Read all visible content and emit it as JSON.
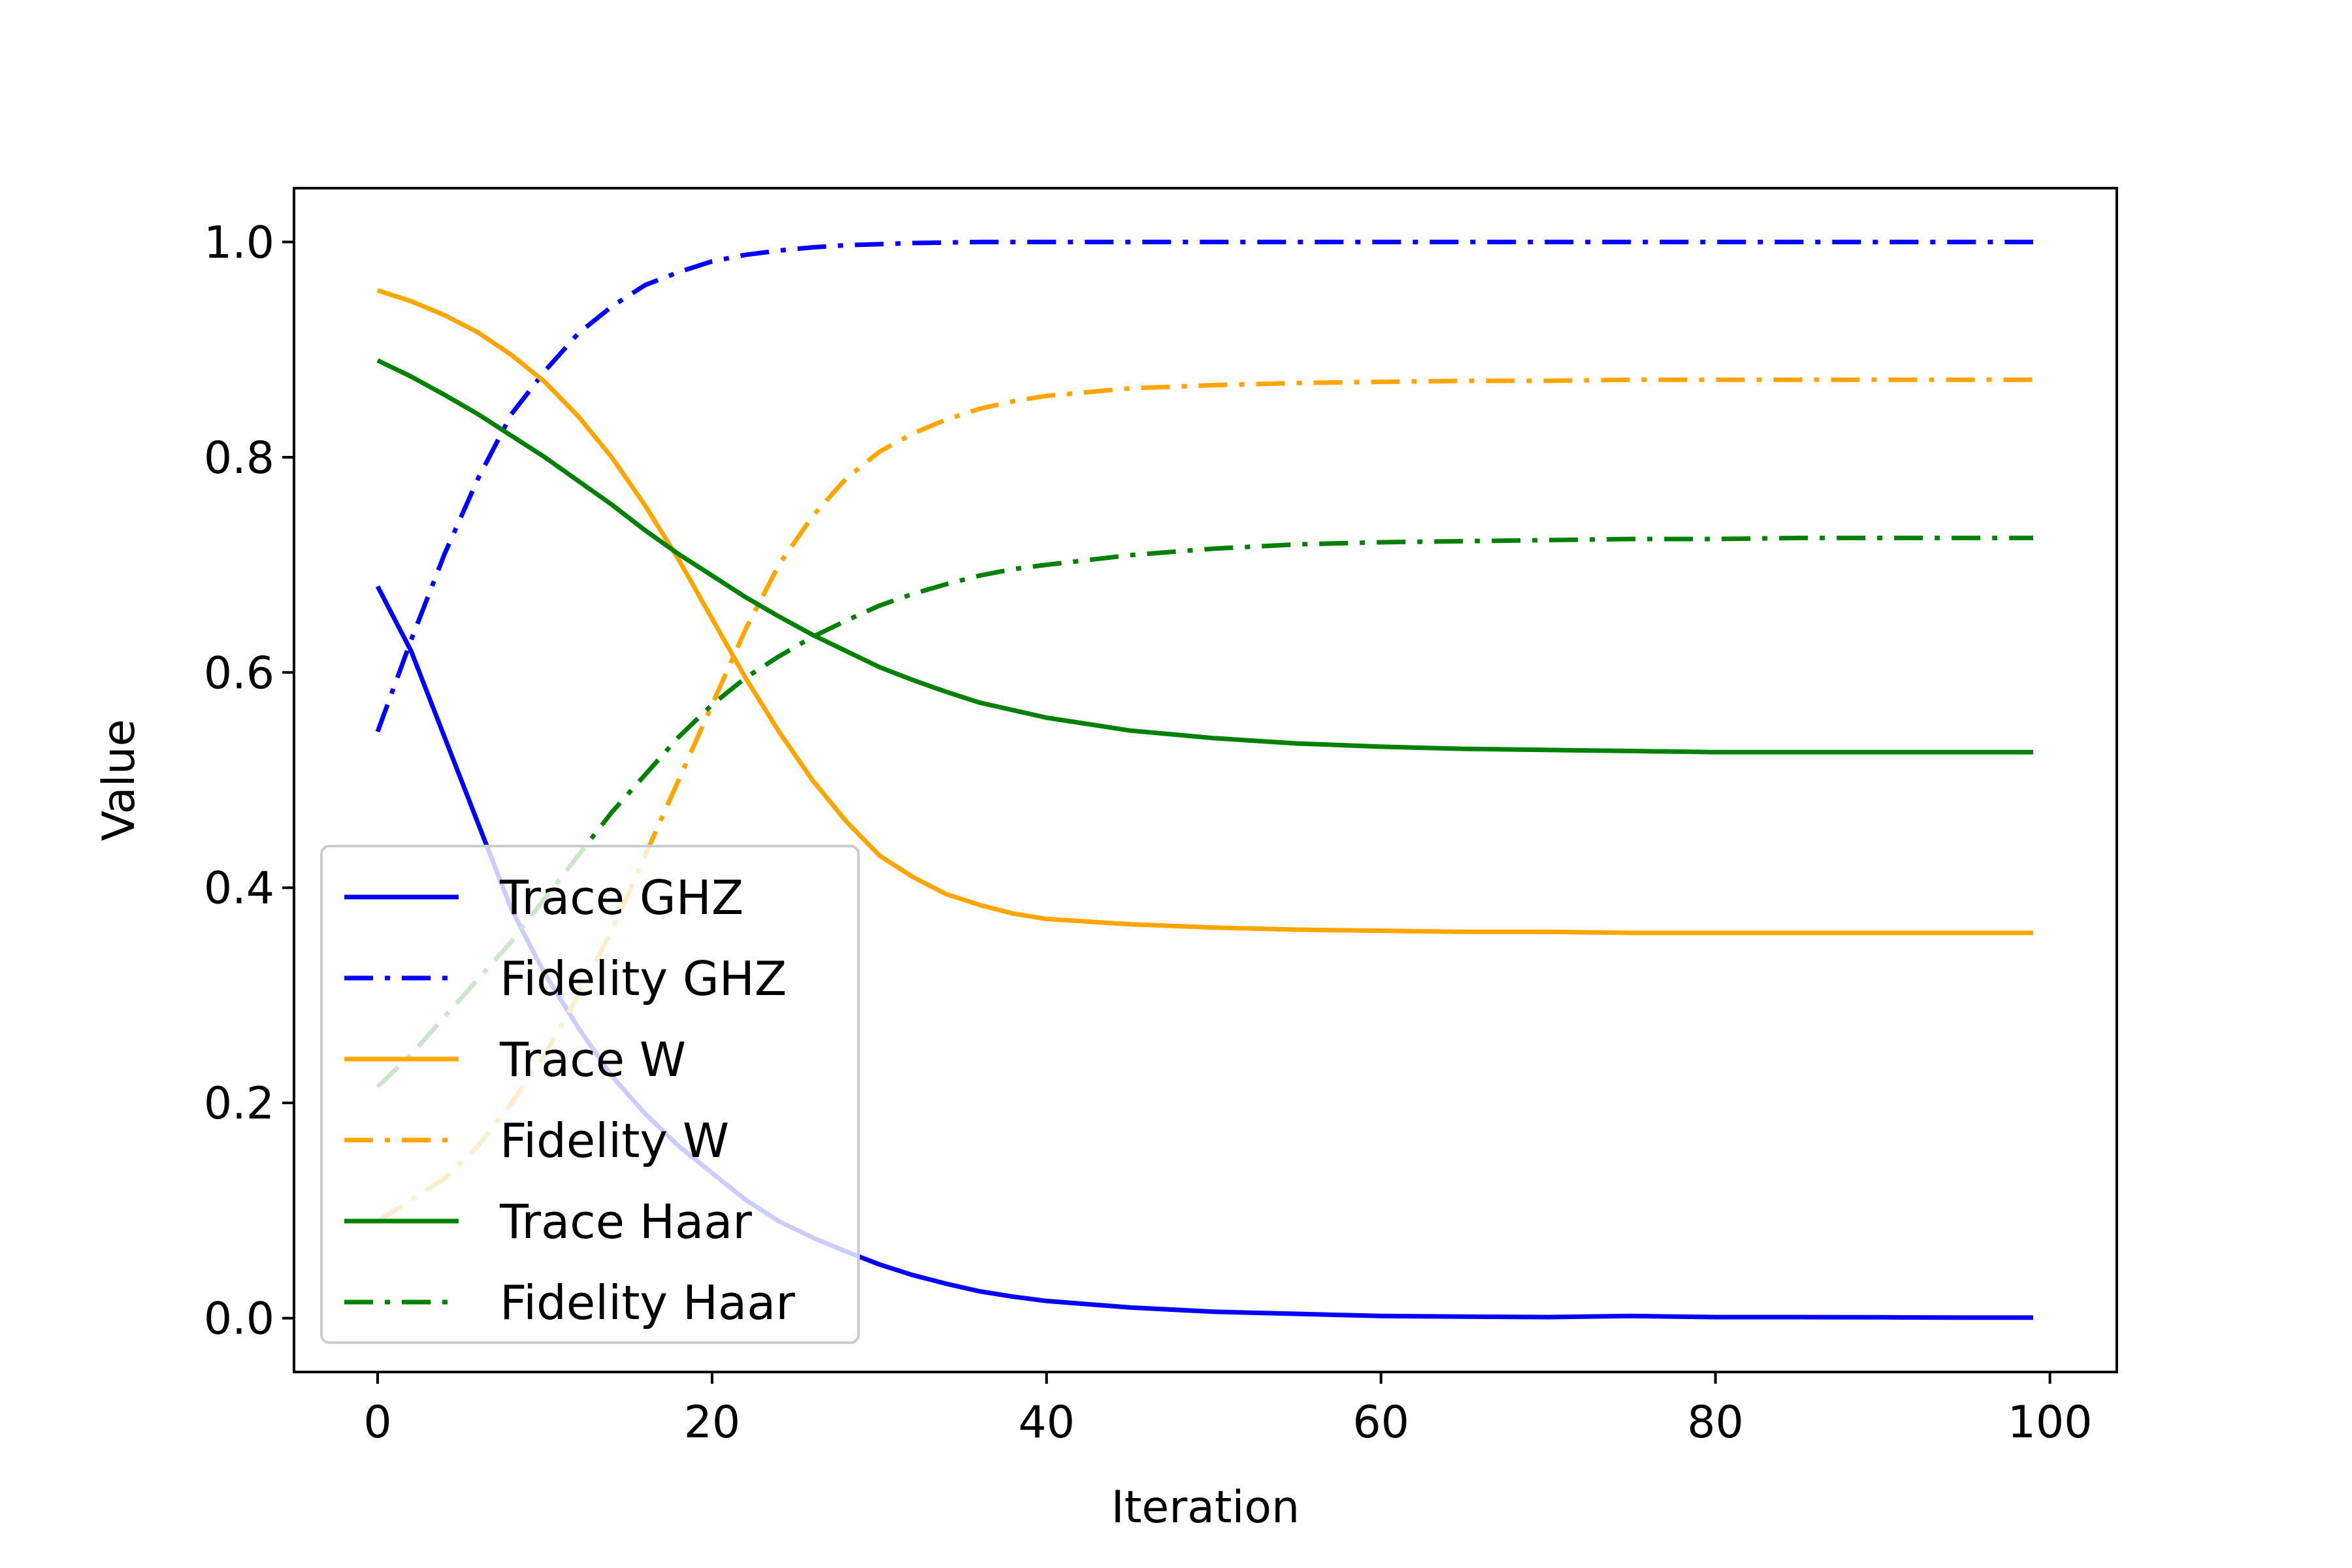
{
  "chart_data": {
    "type": "line",
    "title": "",
    "xlabel": "Iteration",
    "ylabel": "Value",
    "xlim": [
      -5,
      104
    ],
    "ylim": [
      -0.05,
      1.05
    ],
    "xticks": [
      0,
      20,
      40,
      60,
      80,
      100
    ],
    "yticks": [
      0.0,
      0.2,
      0.4,
      0.6,
      0.8,
      1.0
    ],
    "xtick_labels": [
      "0",
      "20",
      "40",
      "60",
      "80",
      "100"
    ],
    "ytick_labels": [
      "0.0",
      "0.2",
      "0.4",
      "0.6",
      "0.8",
      "1.0"
    ],
    "grid": false,
    "legend_position": "lower-left",
    "x": [
      0,
      2,
      4,
      6,
      8,
      10,
      12,
      14,
      16,
      18,
      20,
      22,
      24,
      26,
      28,
      30,
      32,
      34,
      36,
      38,
      40,
      45,
      50,
      55,
      60,
      65,
      70,
      75,
      80,
      85,
      90,
      95,
      99
    ],
    "series": [
      {
        "name": "Trace GHZ",
        "color": "#0000ff",
        "style": "solid",
        "values": [
          0.68,
          0.62,
          0.54,
          0.46,
          0.38,
          0.32,
          0.27,
          0.225,
          0.19,
          0.16,
          0.135,
          0.11,
          0.09,
          0.075,
          0.062,
          0.05,
          0.04,
          0.032,
          0.025,
          0.02,
          0.016,
          0.01,
          0.006,
          0.004,
          0.002,
          0.0015,
          0.001,
          0.002,
          0.001,
          0.001,
          0.0008,
          0.0005,
          0.0005
        ]
      },
      {
        "name": "Fidelity GHZ",
        "color": "#0000ff",
        "style": "dashdot",
        "values": [
          0.545,
          0.63,
          0.71,
          0.78,
          0.84,
          0.88,
          0.915,
          0.94,
          0.96,
          0.972,
          0.982,
          0.988,
          0.992,
          0.995,
          0.997,
          0.998,
          0.999,
          0.9995,
          1.0,
          1.0,
          1.0,
          1.0,
          1.0,
          1.0,
          1.0,
          1.0,
          1.0,
          1.0,
          1.0,
          1.0,
          1.0,
          1.0,
          1.0
        ]
      },
      {
        "name": "Trace W",
        "color": "#ffa500",
        "style": "solid",
        "values": [
          0.955,
          0.945,
          0.932,
          0.916,
          0.895,
          0.87,
          0.838,
          0.8,
          0.755,
          0.705,
          0.65,
          0.595,
          0.545,
          0.5,
          0.462,
          0.43,
          0.41,
          0.394,
          0.384,
          0.376,
          0.371,
          0.366,
          0.363,
          0.361,
          0.36,
          0.359,
          0.359,
          0.358,
          0.358,
          0.358,
          0.358,
          0.358,
          0.358
        ]
      },
      {
        "name": "Fidelity W",
        "color": "#ffa500",
        "style": "dashdot",
        "values": [
          0.09,
          0.11,
          0.13,
          0.16,
          0.2,
          0.245,
          0.3,
          0.36,
          0.43,
          0.5,
          0.57,
          0.64,
          0.7,
          0.745,
          0.78,
          0.805,
          0.822,
          0.835,
          0.845,
          0.852,
          0.857,
          0.864,
          0.867,
          0.869,
          0.87,
          0.871,
          0.871,
          0.872,
          0.872,
          0.872,
          0.872,
          0.872,
          0.872
        ]
      },
      {
        "name": "Trace Haar",
        "color": "#008000",
        "style": "solid",
        "values": [
          0.89,
          0.875,
          0.858,
          0.84,
          0.82,
          0.8,
          0.778,
          0.756,
          0.732,
          0.71,
          0.69,
          0.67,
          0.652,
          0.635,
          0.62,
          0.605,
          0.593,
          0.582,
          0.572,
          0.565,
          0.558,
          0.546,
          0.539,
          0.534,
          0.531,
          0.529,
          0.528,
          0.527,
          0.526,
          0.526,
          0.526,
          0.526,
          0.526
        ]
      },
      {
        "name": "Fidelity Haar",
        "color": "#008000",
        "style": "dashdot",
        "values": [
          0.215,
          0.245,
          0.28,
          0.315,
          0.35,
          0.39,
          0.43,
          0.47,
          0.505,
          0.54,
          0.57,
          0.595,
          0.615,
          0.633,
          0.648,
          0.662,
          0.673,
          0.682,
          0.69,
          0.696,
          0.7,
          0.709,
          0.715,
          0.719,
          0.721,
          0.722,
          0.723,
          0.724,
          0.724,
          0.725,
          0.725,
          0.725,
          0.725
        ]
      }
    ]
  }
}
